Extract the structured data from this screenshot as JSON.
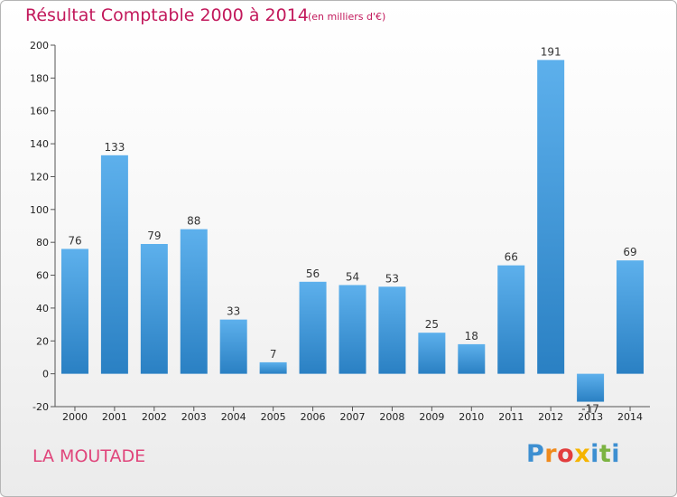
{
  "header": {
    "title": "Résultat Comptable 2000 à 2014",
    "subtitle": "(en milliers d'€)"
  },
  "footer": {
    "commune": "LA MOUTADE",
    "logo_text": "Proxiti"
  },
  "colors": {
    "title": "#c2185b",
    "bar_light": "#5aaeea",
    "bar_dark": "#2f86c8",
    "logo": [
      "#3d8fd1",
      "#f08a1c",
      "#e23d3d",
      "#f5b400",
      "#3d8fd1",
      "#7cb342",
      "#3d8fd1"
    ]
  },
  "chart_data": {
    "type": "bar",
    "categories": [
      "2000",
      "2001",
      "2002",
      "2003",
      "2004",
      "2005",
      "2006",
      "2007",
      "2008",
      "2009",
      "2010",
      "2011",
      "2012",
      "2013",
      "2014"
    ],
    "values": [
      76,
      133,
      79,
      88,
      33,
      7,
      56,
      54,
      53,
      25,
      18,
      66,
      191,
      -17,
      69
    ],
    "ylim": [
      -20,
      200
    ],
    "yticks": [
      -20,
      0,
      20,
      40,
      60,
      80,
      100,
      120,
      140,
      160,
      180,
      200
    ],
    "grid": false,
    "data_labels": true
  }
}
